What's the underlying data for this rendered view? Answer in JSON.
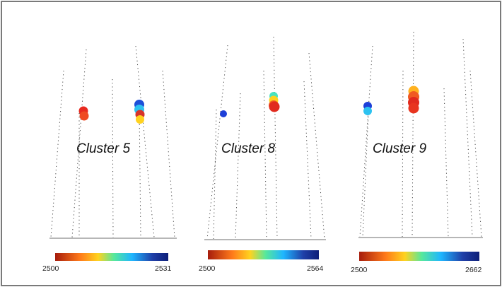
{
  "clusters": [
    {
      "id": "cluster-5",
      "label": "Cluster 5",
      "scale_min": "2500",
      "scale_max": "2531"
    },
    {
      "id": "cluster-8",
      "label": "Cluster 8",
      "scale_min": "2500",
      "scale_max": "2564"
    },
    {
      "id": "cluster-9",
      "label": "Cluster 9",
      "scale_min": "2500",
      "scale_max": "2662"
    }
  ],
  "colormap": [
    "#a61c0c",
    "#ff7a1a",
    "#ffd21f",
    "#56e89c",
    "#1fb6ff",
    "#1f3fa8",
    "#0d1e78"
  ],
  "frame_color": "#7a7a7a"
}
